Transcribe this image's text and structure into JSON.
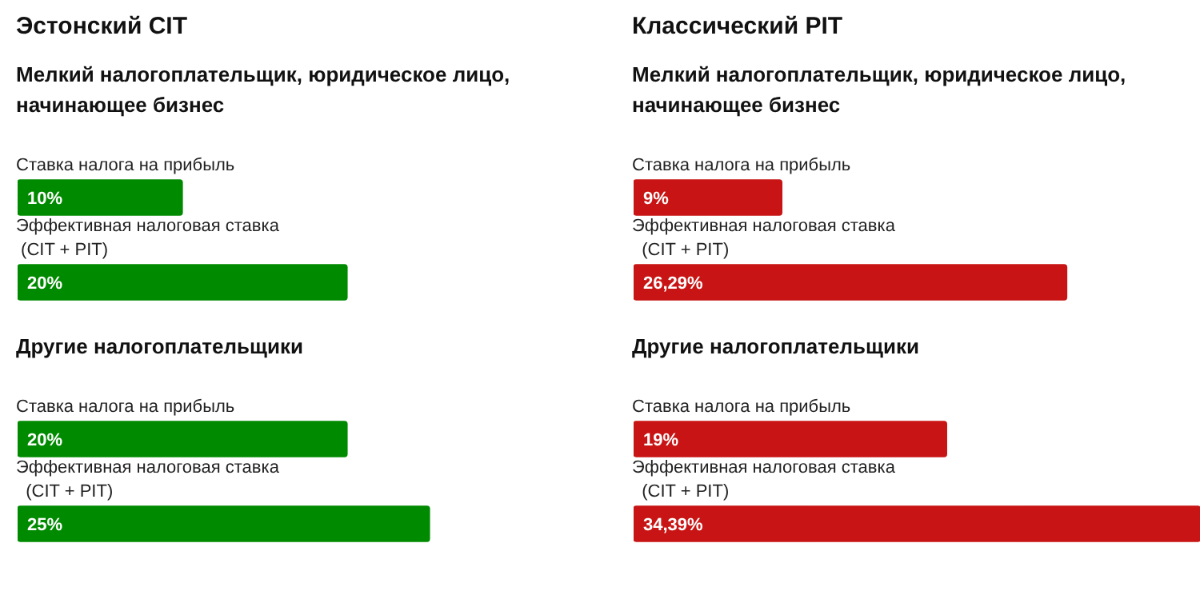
{
  "chart_data": [
    {
      "type": "bar",
      "orientation": "horizontal",
      "title": "Эстонский CIT",
      "subtitle": "Мелкий налогоплательщик, юридическое лицо, начинающее бизнес",
      "categories": [
        "Ставка налога на прибыль",
        "Эффективная налоговая ставка\n (CIT + PIT)"
      ],
      "values": [
        10,
        20
      ],
      "value_labels": [
        "10%",
        "20%"
      ],
      "color": "#008a00",
      "legend": false
    },
    {
      "type": "bar",
      "orientation": "horizontal",
      "subtitle": "Другие налогоплательщики",
      "categories": [
        "Ставка налога на прибыль",
        "Эффективная налоговая ставка\n  (CIT + PIT)"
      ],
      "values": [
        20,
        25
      ],
      "value_labels": [
        "20%",
        "25%"
      ],
      "color": "#008a00",
      "legend": false
    },
    {
      "type": "bar",
      "orientation": "horizontal",
      "title": "Классический PIT",
      "subtitle": "Мелкий налогоплательщик, юридическое лицо, начинающее бизнес",
      "categories": [
        "Ставка налога на прибыль",
        "Эффективная налоговая ставка\n  (CIT + PIT)"
      ],
      "values": [
        9,
        26.29
      ],
      "value_labels": [
        "9%",
        "26,29%"
      ],
      "color": "#c81414",
      "legend": false
    },
    {
      "type": "bar",
      "orientation": "horizontal",
      "subtitle": "Другие налогоплательщики",
      "categories": [
        "Ставка налога на прибыль",
        "Эффективная налоговая ставка\n  (CIT + PIT)"
      ],
      "values": [
        19,
        34.39
      ],
      "value_labels": [
        "19%",
        "34,39%"
      ],
      "color": "#c81414",
      "legend": false
    }
  ]
}
